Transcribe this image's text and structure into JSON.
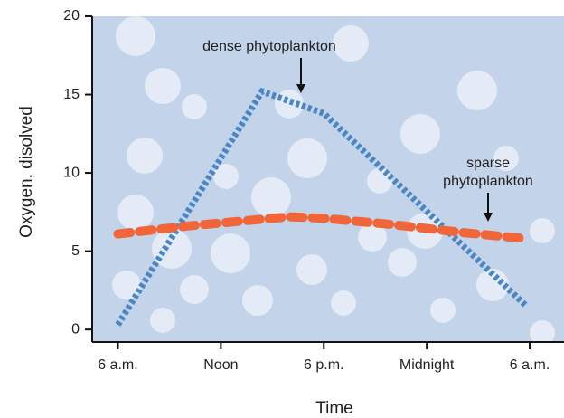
{
  "chart_data": {
    "type": "line",
    "xlabel": "Time",
    "ylabel": "Oxygen, disolved",
    "xlim": [
      4.5,
      32
    ],
    "ylim": [
      -0.8,
      20
    ],
    "xticks": [
      {
        "value": 6,
        "label": "6 a.m."
      },
      {
        "value": 12,
        "label": "Noon"
      },
      {
        "value": 18,
        "label": "6 p.m."
      },
      {
        "value": 24,
        "label": "Midnight"
      },
      {
        "value": 30,
        "label": "6 a.m."
      }
    ],
    "yticks": [
      0,
      5,
      10,
      15,
      20
    ],
    "series": [
      {
        "name": "dense phytoplankton",
        "color": "#4a86c5",
        "x": [
          6,
          14.4,
          18,
          29.8
        ],
        "values": [
          0.3,
          15.2,
          13.8,
          1.5
        ]
      },
      {
        "name": "sparse phytoplankton",
        "color": "#f0663a",
        "x": [
          6,
          10,
          14,
          16,
          18,
          22,
          26,
          29.8
        ],
        "values": [
          6.1,
          6.6,
          7.0,
          7.2,
          7.1,
          6.7,
          6.2,
          5.8
        ]
      }
    ],
    "annotations": [
      [
        "dense phytoplankton"
      ],
      [
        "sparse",
        "phytoplankton"
      ]
    ]
  }
}
